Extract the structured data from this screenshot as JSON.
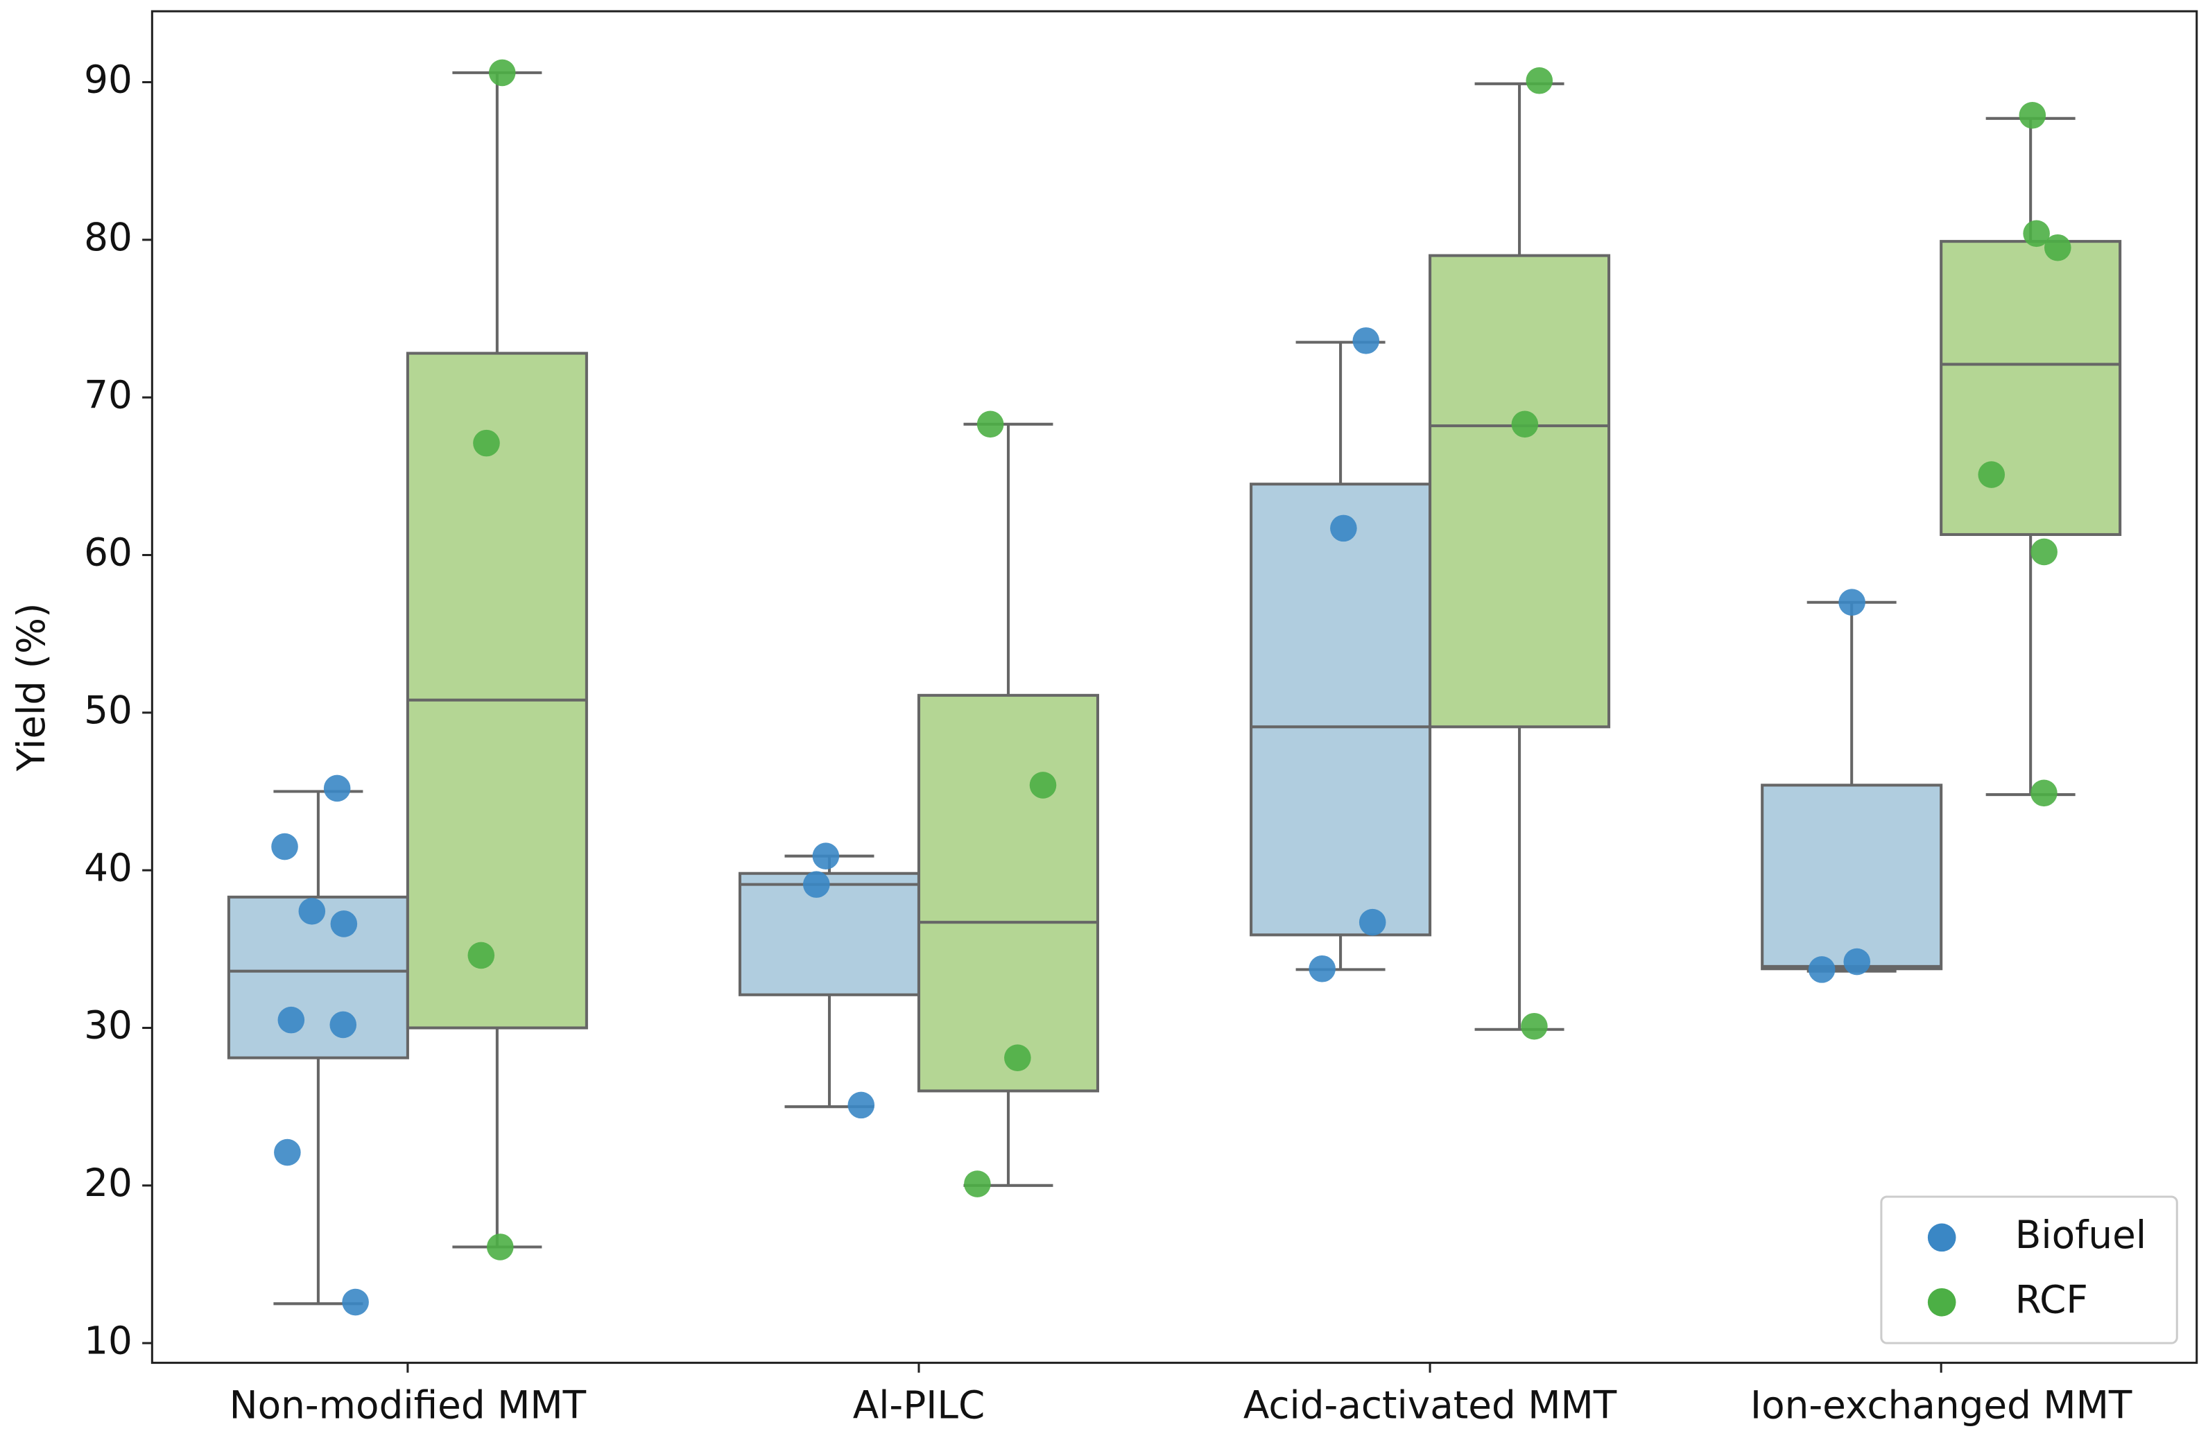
{
  "chart_data": {
    "type": "box",
    "ylabel": "Yield (%)",
    "categories": [
      "Non-modified MMT",
      "Al-PILC",
      "Acid-activated MMT",
      "Ion-exchanged MMT"
    ],
    "ylim": [
      8.75,
      94.5
    ],
    "yticks": [
      10,
      20,
      30,
      40,
      50,
      60,
      70,
      80,
      90
    ],
    "grid": false,
    "legend": "lower right",
    "series": [
      {
        "name": "Biofuel",
        "color": "#3a87c5",
        "box_color": "#b0cddf",
        "boxes": [
          {
            "whislo": 12.5,
            "q1": 28.1,
            "med": 33.6,
            "q3": 38.3,
            "whishi": 45.0,
            "points": [
              45.2,
              41.5,
              37.4,
              36.6,
              30.5,
              30.2,
              22.1,
              12.6
            ]
          },
          {
            "whislo": 25.0,
            "q1": 32.1,
            "med": 39.1,
            "q3": 39.8,
            "whishi": 40.9,
            "points": [
              40.9,
              39.1,
              25.1
            ]
          },
          {
            "whislo": 33.7,
            "q1": 35.9,
            "med": 49.1,
            "q3": 64.5,
            "whishi": 73.5,
            "points": [
              73.6,
              61.7,
              36.7,
              33.75
            ]
          },
          {
            "whislo": 33.6,
            "q1": 33.75,
            "med": 33.9,
            "q3": 45.4,
            "whishi": 57.0,
            "points": [
              57.0,
              34.2,
              33.7
            ]
          }
        ]
      },
      {
        "name": "RCF",
        "color": "#4caf45",
        "box_color": "#b4d694",
        "boxes": [
          {
            "whislo": 16.1,
            "q1": 30.0,
            "med": 50.8,
            "q3": 72.8,
            "whishi": 90.6,
            "points": [
              90.6,
              67.1,
              34.6,
              16.1
            ]
          },
          {
            "whislo": 20.0,
            "q1": 26.0,
            "med": 36.7,
            "q3": 51.1,
            "whishi": 68.3,
            "points": [
              68.3,
              45.4,
              28.1,
              20.1
            ]
          },
          {
            "whislo": 29.9,
            "q1": 49.1,
            "med": 68.2,
            "q3": 79.0,
            "whishi": 89.9,
            "points": [
              90.1,
              68.3,
              30.1
            ]
          },
          {
            "whislo": 44.8,
            "q1": 61.3,
            "med": 72.1,
            "q3": 79.9,
            "whishi": 87.7,
            "points": [
              87.9,
              80.4,
              79.5,
              65.1,
              60.2,
              44.9
            ]
          }
        ]
      }
    ]
  }
}
